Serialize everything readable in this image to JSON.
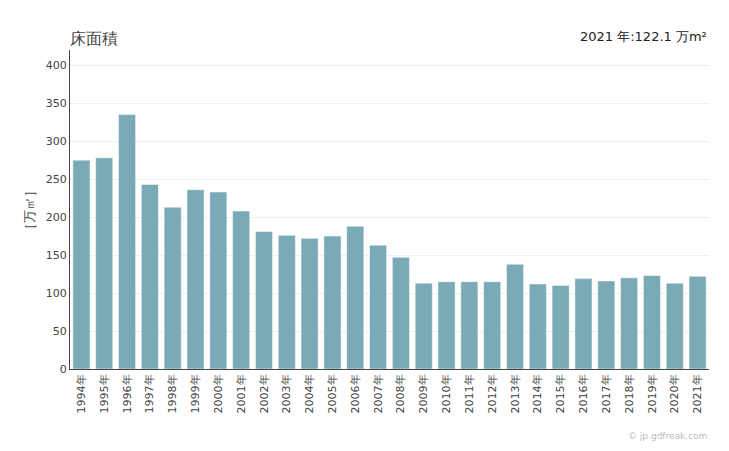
{
  "chart_data": {
    "type": "bar",
    "title": "床面積",
    "ylabel": "［万㎡］",
    "annotations": [
      "2021 年:122.1 万m²",
      "© jp.gdfreak.com"
    ],
    "categories": [
      "1994年",
      "1995年",
      "1996年",
      "1997年",
      "1998年",
      "1999年",
      "2000年",
      "2001年",
      "2002年",
      "2003年",
      "2004年",
      "2005年",
      "2006年",
      "2007年",
      "2008年",
      "2009年",
      "2010年",
      "2011年",
      "2012年",
      "2013年",
      "2014年",
      "2015年",
      "2016年",
      "2017年",
      "2018年",
      "2019年",
      "2020年",
      "2021年"
    ],
    "values": [
      275.0,
      278.0,
      335.0,
      243.0,
      213.0,
      236.0,
      233.0,
      208.0,
      181.0,
      176.0,
      172.0,
      175.0,
      188.0,
      163.0,
      147.0,
      113.0,
      115.0,
      115.0,
      115.0,
      138.0,
      112.0,
      110.0,
      119.0,
      116.0,
      120.0,
      123.0,
      113.0,
      122.1
    ],
    "color": "#7aaab5",
    "ylim": [
      0,
      420
    ],
    "yticks": [
      0,
      50,
      100,
      150,
      200,
      250,
      300,
      350,
      400
    ],
    "grid": true
  }
}
